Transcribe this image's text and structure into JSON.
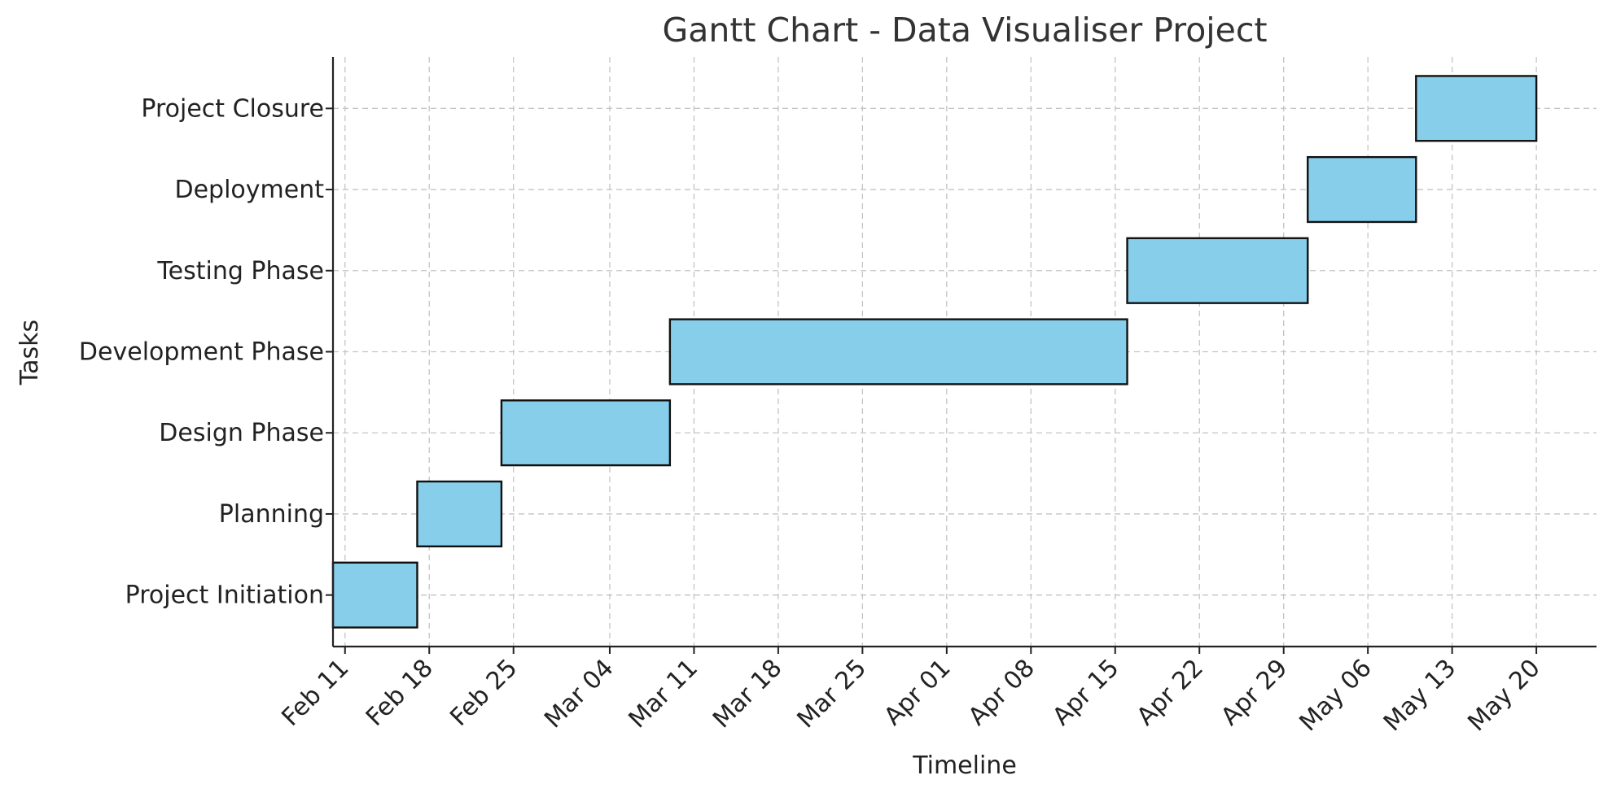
{
  "chart_data": {
    "type": "bar",
    "orientation": "horizontal",
    "title": "Gantt Chart - Data Visualiser Project",
    "xlabel": "Timeline",
    "ylabel": "Tasks",
    "x_tick_labels": [
      "Feb 11",
      "Feb 18",
      "Feb 25",
      "Mar 04",
      "Mar 11",
      "Mar 18",
      "Mar 25",
      "Apr 01",
      "Apr 08",
      "Apr 15",
      "Apr 22",
      "Apr 29",
      "May 06",
      "May 13",
      "May 20"
    ],
    "x_tick_dates": [
      "2024-02-11",
      "2024-02-18",
      "2024-02-25",
      "2024-03-04",
      "2024-03-11",
      "2024-03-18",
      "2024-03-25",
      "2024-04-01",
      "2024-04-08",
      "2024-04-15",
      "2024-04-22",
      "2024-04-29",
      "2024-05-06",
      "2024-05-13",
      "2024-05-20"
    ],
    "xlim": [
      "2024-02-10",
      "2024-05-25"
    ],
    "tasks": [
      {
        "name": "Project Initiation",
        "start": "2024-02-10",
        "end": "2024-02-16"
      },
      {
        "name": "Planning",
        "start": "2024-02-17",
        "end": "2024-02-23"
      },
      {
        "name": "Design Phase",
        "start": "2024-02-24",
        "end": "2024-03-08"
      },
      {
        "name": "Development Phase",
        "start": "2024-03-09",
        "end": "2024-04-15"
      },
      {
        "name": "Testing Phase",
        "start": "2024-04-16",
        "end": "2024-04-30"
      },
      {
        "name": "Deployment",
        "start": "2024-05-01",
        "end": "2024-05-09"
      },
      {
        "name": "Project Closure",
        "start": "2024-05-10",
        "end": "2024-05-19"
      }
    ],
    "grid": true,
    "bar_color": "#87ceeb",
    "bar_edge_color": "#111111"
  }
}
